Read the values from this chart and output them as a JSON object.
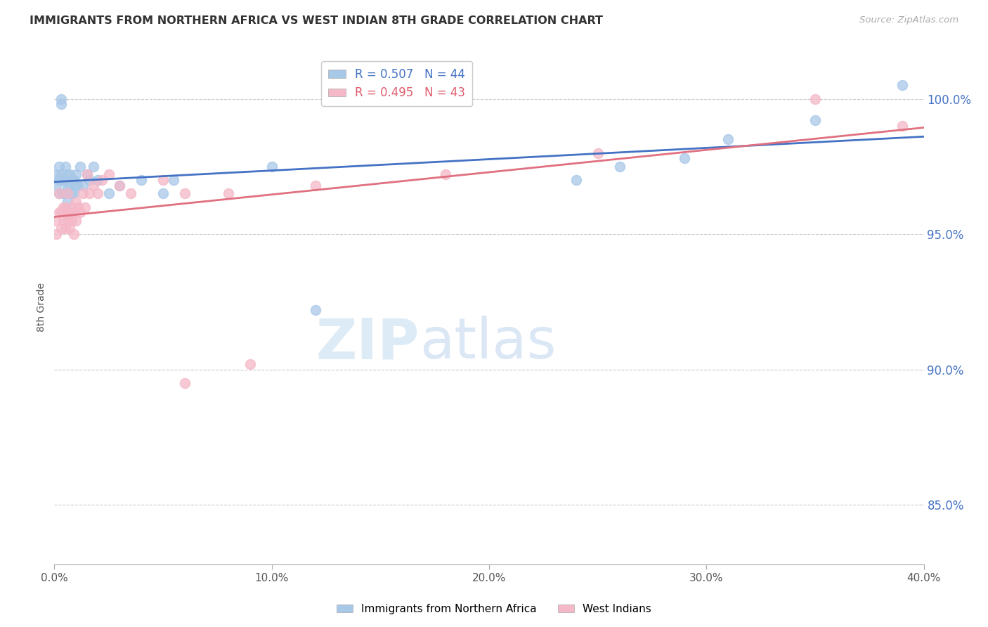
{
  "title": "IMMIGRANTS FROM NORTHERN AFRICA VS WEST INDIAN 8TH GRADE CORRELATION CHART",
  "source": "Source: ZipAtlas.com",
  "ylabel": "8th Grade",
  "ytick_labels": [
    "100.0%",
    "95.0%",
    "90.0%",
    "85.0%"
  ],
  "ytick_values": [
    1.0,
    0.95,
    0.9,
    0.85
  ],
  "xlim": [
    0.0,
    0.4
  ],
  "ylim": [
    0.828,
    1.018
  ],
  "legend_blue_label": "R = 0.507   N = 44",
  "legend_pink_label": "R = 0.495   N = 43",
  "blue_color": "#a8c8e8",
  "pink_color": "#f4b8c8",
  "blue_line_color": "#4472c4",
  "pink_line_color": "#e07080",
  "blue_scatter_x": [
    0.001,
    0.001,
    0.002,
    0.002,
    0.002,
    0.003,
    0.003,
    0.003,
    0.004,
    0.004,
    0.005,
    0.005,
    0.005,
    0.006,
    0.006,
    0.006,
    0.007,
    0.007,
    0.008,
    0.008,
    0.009,
    0.009,
    0.01,
    0.01,
    0.011,
    0.012,
    0.013,
    0.015,
    0.016,
    0.018,
    0.02,
    0.025,
    0.03,
    0.04,
    0.05,
    0.055,
    0.1,
    0.12,
    0.24,
    0.26,
    0.29,
    0.31,
    0.35,
    0.39
  ],
  "blue_scatter_y": [
    0.972,
    0.968,
    0.975,
    0.97,
    0.965,
    1.0,
    0.998,
    0.972,
    0.97,
    0.965,
    0.975,
    0.97,
    0.965,
    0.972,
    0.968,
    0.962,
    0.968,
    0.972,
    0.965,
    0.97,
    0.97,
    0.965,
    0.968,
    0.972,
    0.968,
    0.975,
    0.968,
    0.972,
    0.97,
    0.975,
    0.97,
    0.965,
    0.968,
    0.97,
    0.965,
    0.97,
    0.975,
    0.922,
    0.97,
    0.975,
    0.978,
    0.985,
    0.992,
    1.005
  ],
  "pink_scatter_x": [
    0.001,
    0.001,
    0.002,
    0.002,
    0.003,
    0.003,
    0.004,
    0.004,
    0.005,
    0.005,
    0.005,
    0.006,
    0.006,
    0.007,
    0.007,
    0.008,
    0.008,
    0.009,
    0.009,
    0.01,
    0.01,
    0.011,
    0.012,
    0.013,
    0.014,
    0.015,
    0.016,
    0.018,
    0.02,
    0.022,
    0.025,
    0.03,
    0.035,
    0.05,
    0.06,
    0.06,
    0.08,
    0.09,
    0.12,
    0.18,
    0.25,
    0.35,
    0.39
  ],
  "pink_scatter_y": [
    0.95,
    0.955,
    0.958,
    0.965,
    0.958,
    0.952,
    0.96,
    0.955,
    0.958,
    0.952,
    0.96,
    0.965,
    0.955,
    0.958,
    0.952,
    0.96,
    0.955,
    0.958,
    0.95,
    0.962,
    0.955,
    0.96,
    0.958,
    0.965,
    0.96,
    0.972,
    0.965,
    0.968,
    0.965,
    0.97,
    0.972,
    0.968,
    0.965,
    0.97,
    0.965,
    0.895,
    0.965,
    0.902,
    0.968,
    0.972,
    0.98,
    1.0,
    0.99
  ],
  "grid_color": "#cccccc",
  "background_color": "#ffffff",
  "xtick_vals": [
    0.0,
    0.1,
    0.2,
    0.3,
    0.4
  ],
  "xtick_labels": [
    "0.0%",
    "10.0%",
    "20.0%",
    "30.0%",
    "40.0%"
  ]
}
